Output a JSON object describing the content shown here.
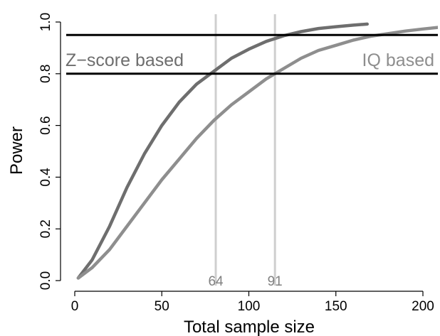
{
  "chart_data": {
    "type": "line",
    "title": "",
    "xlabel": "Total sample size",
    "ylabel": "Power",
    "xlim": [
      0,
      205
    ],
    "ylim": [
      0,
      1.0
    ],
    "x_ticks": [
      0,
      50,
      100,
      150,
      200
    ],
    "x_tick_labels": [
      "0",
      "50",
      "100",
      "150",
      "200"
    ],
    "y_ticks": [
      0.0,
      0.2,
      0.4,
      0.6,
      0.8,
      1.0
    ],
    "y_tick_labels": [
      "0.0",
      "0.2",
      "0.4",
      "0.6",
      "0.8",
      "1.0"
    ],
    "grid": false,
    "series": [
      {
        "name": "Z−score based",
        "color": "#6e6e6e",
        "x": [
          2,
          10,
          20,
          30,
          40,
          50,
          60,
          70,
          80,
          90,
          100,
          110,
          120,
          130,
          140,
          150,
          160,
          168
        ],
        "y": [
          0.01,
          0.08,
          0.21,
          0.36,
          0.49,
          0.6,
          0.69,
          0.76,
          0.81,
          0.86,
          0.895,
          0.925,
          0.947,
          0.963,
          0.975,
          0.982,
          0.988,
          0.992
        ]
      },
      {
        "name": "IQ based",
        "color": "#8e8e8e",
        "x": [
          2,
          10,
          20,
          30,
          40,
          50,
          60,
          70,
          80,
          90,
          100,
          110,
          120,
          130,
          140,
          150,
          160,
          170,
          180,
          190,
          200,
          210
        ],
        "y": [
          0.01,
          0.05,
          0.12,
          0.21,
          0.3,
          0.39,
          0.47,
          0.55,
          0.62,
          0.68,
          0.73,
          0.78,
          0.82,
          0.86,
          0.89,
          0.91,
          0.93,
          0.945,
          0.955,
          0.965,
          0.973,
          0.98
        ]
      }
    ],
    "hlines": [
      0.8,
      0.95
    ],
    "vlines": [
      {
        "x": 81,
        "label": "64"
      },
      {
        "x": 115,
        "label": "91"
      }
    ]
  },
  "colors": {
    "axis": "#000000",
    "reference_line": "#000000",
    "vline": "#cfcfcf",
    "vline_label": "#808080"
  }
}
